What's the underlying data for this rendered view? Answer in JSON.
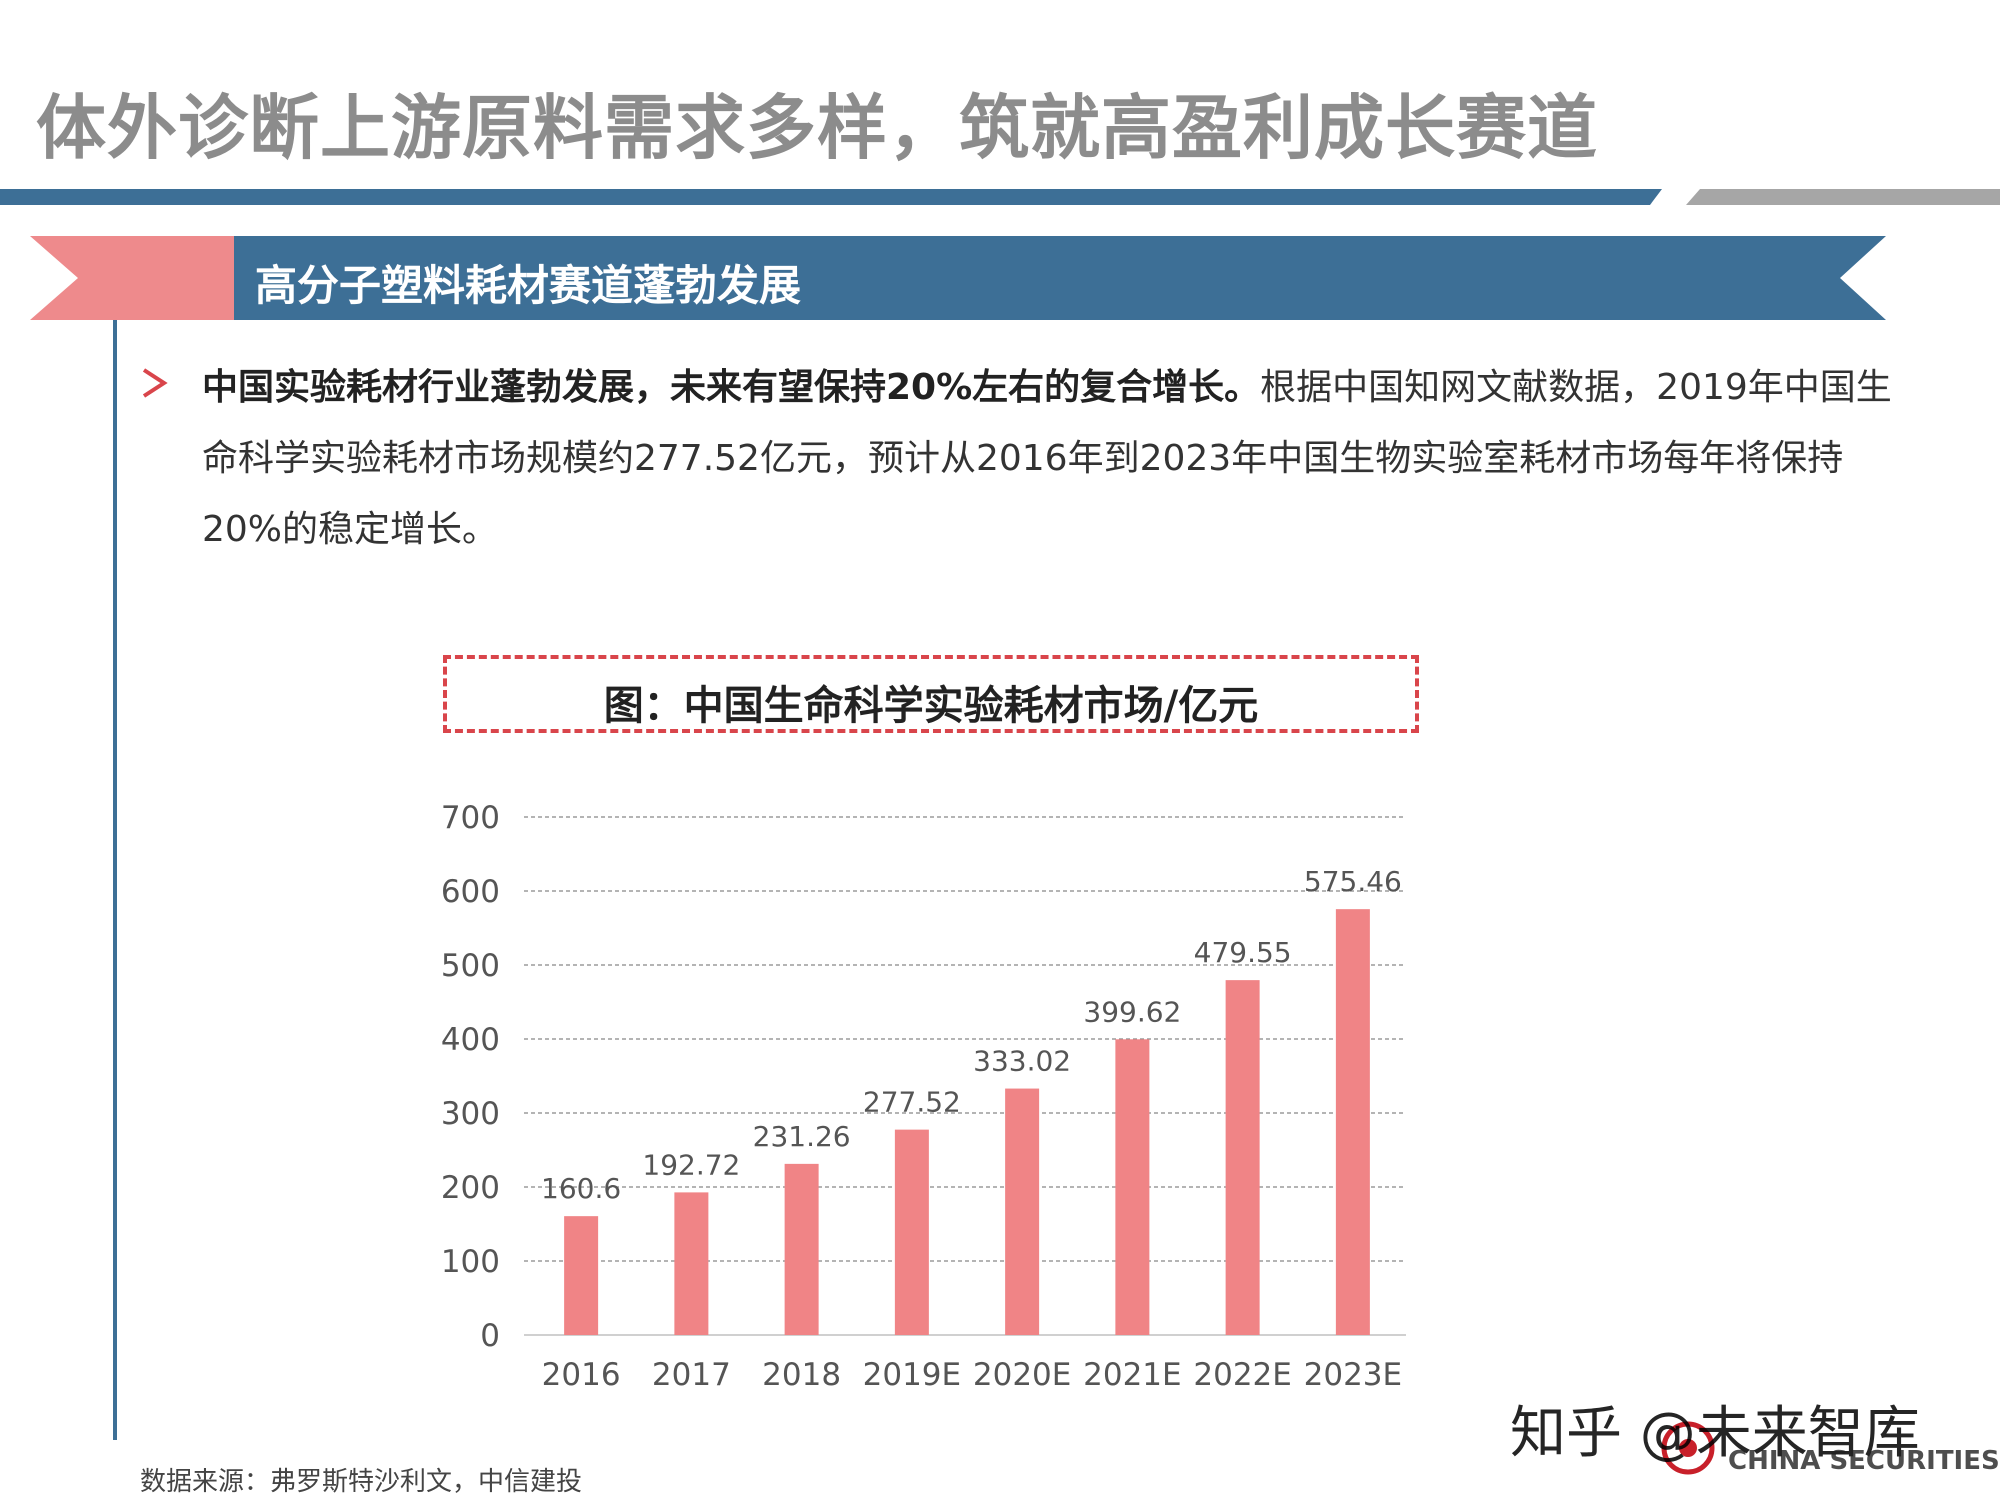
{
  "page": {
    "title": "体外诊断上游原料需求多样，筑就高盈利成长赛道",
    "section_title": "高分子塑料耗材赛道蓬勃发展",
    "bullet": {
      "lead": "中国实验耗材行业蓬勃发展，未来有望保持20%左右的复合增长。",
      "body": "根据中国知网文献数据，2019年中国生命科学实验耗材市场规模约277.52亿元，预计从2016年到2023年中国生物实验室耗材市场每年将保持20%的稳定增长。"
    },
    "source": "数据来源：弗罗斯特沙利文，中信建投",
    "watermark": "知乎 @未来智库",
    "logo_subtext": "CHINA SECURITIES"
  },
  "colors": {
    "title_gray": "#8c8c8c",
    "accent_blue": "#3d6f96",
    "accent_pink": "#ee8a8c",
    "bar": "#f08486",
    "dash_red": "#d9454b"
  },
  "chart_data": {
    "type": "bar",
    "title": "图：中国生命科学实验耗材市场/亿元",
    "categories": [
      "2016",
      "2017",
      "2018",
      "2019E",
      "2020E",
      "2021E",
      "2022E",
      "2023E"
    ],
    "values": [
      160.6,
      192.72,
      231.26,
      277.52,
      333.02,
      399.62,
      479.55,
      575.46
    ],
    "data_labels": [
      "160.6",
      "192.72",
      "231.26",
      "277.52",
      "333.02",
      "399.62",
      "479.55",
      "575.46"
    ],
    "y_ticks": [
      "0",
      "100",
      "200",
      "300",
      "400",
      "500",
      "600",
      "700"
    ],
    "ylim": [
      0,
      700
    ],
    "grid": true,
    "legend": "none"
  }
}
